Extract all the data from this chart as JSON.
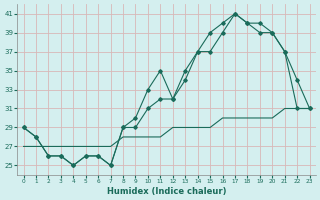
{
  "xlabel": "Humidex (Indice chaleur)",
  "bg_color": "#d4efef",
  "grid_color": "#c0d8d8",
  "line_color": "#1a6b5a",
  "xlim": [
    -0.5,
    23.5
  ],
  "ylim": [
    24.0,
    42.0
  ],
  "xticks": [
    0,
    1,
    2,
    3,
    4,
    5,
    6,
    7,
    8,
    9,
    10,
    11,
    12,
    13,
    14,
    15,
    16,
    17,
    18,
    19,
    20,
    21,
    22,
    23
  ],
  "yticks": [
    25,
    27,
    29,
    31,
    33,
    35,
    37,
    39,
    41
  ],
  "line1_x": [
    0,
    1,
    2,
    3,
    4,
    5,
    6,
    7,
    8,
    9,
    10,
    11,
    12,
    13,
    14,
    15,
    16,
    17,
    18,
    19,
    20,
    21,
    22,
    23
  ],
  "line1_y": [
    29,
    28,
    26,
    26,
    25,
    26,
    26,
    25,
    29,
    29,
    31,
    32,
    32,
    35,
    37,
    37,
    39,
    41,
    40,
    40,
    39,
    37,
    31,
    31
  ],
  "line2_x": [
    0,
    1,
    2,
    3,
    4,
    5,
    6,
    7,
    8,
    9,
    10,
    11,
    12,
    13,
    14,
    15,
    16,
    17,
    18,
    19,
    20,
    21,
    22,
    23
  ],
  "line2_y": [
    29,
    28,
    26,
    26,
    25,
    26,
    26,
    25,
    29,
    30,
    33,
    35,
    32,
    34,
    37,
    39,
    40,
    41,
    40,
    39,
    39,
    37,
    34,
    31
  ],
  "line3_x": [
    0,
    1,
    2,
    3,
    4,
    5,
    6,
    7,
    8,
    9,
    10,
    11,
    12,
    13,
    14,
    15,
    16,
    17,
    18,
    19,
    20,
    21,
    22,
    23
  ],
  "line3_y": [
    27,
    27,
    27,
    27,
    27,
    27,
    27,
    27,
    28,
    28,
    28,
    28,
    29,
    29,
    29,
    29,
    30,
    30,
    30,
    30,
    30,
    31,
    31,
    31
  ]
}
